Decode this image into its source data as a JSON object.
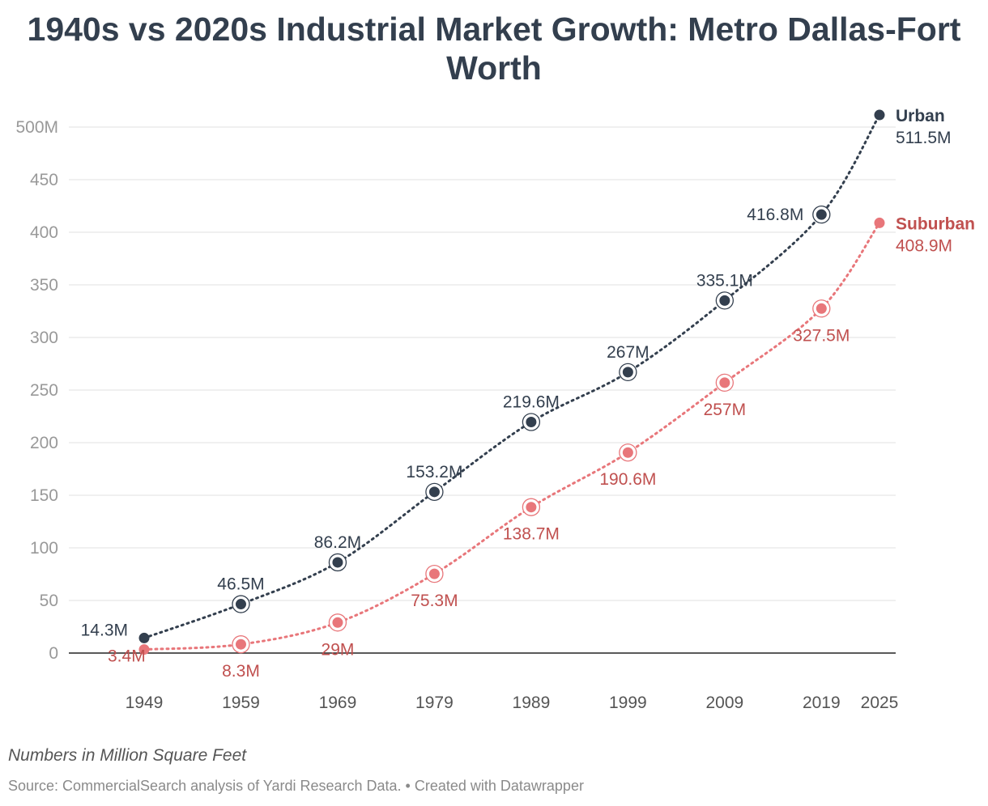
{
  "chart_data": {
    "type": "line",
    "title": "1940s vs 2020s Industrial Market Growth: Metro Dallas-Fort Worth",
    "notes": "Numbers in Million Square Feet",
    "source": "Source: CommercialSearch analysis of Yardi Research Data. • Created with Datawrapper",
    "x": [
      1949,
      1959,
      1969,
      1979,
      1989,
      1999,
      2009,
      2019,
      2025
    ],
    "x_tick_labels": [
      "1949",
      "1959",
      "1969",
      "1979",
      "1989",
      "1999",
      "2009",
      "2019",
      "2025"
    ],
    "y_ticks": [
      0,
      50,
      100,
      150,
      200,
      250,
      300,
      350,
      400,
      450,
      500
    ],
    "y_tick_labels": [
      "0",
      "50",
      "100",
      "150",
      "200",
      "250",
      "300",
      "350",
      "400",
      "450",
      "500M"
    ],
    "ylim": [
      0,
      500
    ],
    "grid": true,
    "colors": {
      "urban": "#333f4e",
      "suburban": "#e8767a",
      "suburban_label": "#c0504f"
    },
    "series": [
      {
        "name": "Urban",
        "values": [
          14.3,
          46.5,
          86.2,
          153.2,
          219.6,
          267,
          335.1,
          416.8,
          511.5
        ],
        "labels": [
          "14.3M",
          "46.5M",
          "86.2M",
          "153.2M",
          "219.6M",
          "267M",
          "335.1M",
          "416.8M",
          "511.5M"
        ]
      },
      {
        "name": "Suburban",
        "values": [
          3.4,
          8.3,
          29,
          75.3,
          138.7,
          190.6,
          257,
          327.5,
          408.9
        ],
        "labels": [
          "3.4M",
          "8.3M",
          "29M",
          "75.3M",
          "138.7M",
          "190.6M",
          "257M",
          "327.5M",
          "408.9M"
        ]
      }
    ]
  }
}
